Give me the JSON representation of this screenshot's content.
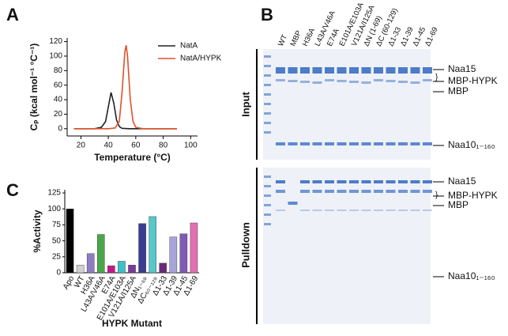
{
  "panels": [
    "A",
    "B",
    "C"
  ],
  "chart_data": [
    {
      "type": "line",
      "xlabel": "Temperature (°C)",
      "ylabel": "Cₚ (kcal mol⁻¹ °C⁻¹)",
      "xlim": [
        10,
        105
      ],
      "ylim": [
        -10,
        125
      ],
      "xticks": [
        20,
        40,
        60,
        80,
        100
      ],
      "yticks": [
        0,
        20,
        40,
        60,
        80,
        100,
        120
      ],
      "series": [
        {
          "name": "NatA",
          "color": "#222222",
          "x": [
            15,
            30,
            35,
            38,
            40,
            42,
            44,
            46,
            48,
            50,
            55,
            60,
            90
          ],
          "values": [
            0,
            0,
            2,
            10,
            30,
            50,
            35,
            12,
            3,
            0.5,
            0,
            0,
            0
          ]
        },
        {
          "name": "NatA/HYPK",
          "color": "#e0502a",
          "x": [
            15,
            40,
            45,
            48,
            50,
            52,
            53,
            54,
            56,
            58,
            60,
            65,
            90
          ],
          "values": [
            0,
            0,
            1,
            10,
            50,
            105,
            115,
            100,
            40,
            10,
            2,
            0,
            0
          ]
        }
      ]
    },
    {
      "type": "bar",
      "xlabel": "HYPK Mutant",
      "ylabel": "%Activity",
      "categories": [
        "Apo",
        "WT",
        "H36A",
        "L43A/V46A",
        "E74A",
        "E101A/E103A",
        "V121A/I125A",
        "ΔN₁₋₆₉",
        "ΔC₆₀₋₁₂₉",
        "Δ1-33",
        "Δ1-39",
        "Δ1-45",
        "Δ1-69"
      ],
      "values": [
        100,
        12,
        30,
        60,
        11,
        18,
        12,
        77,
        88,
        15,
        56,
        61,
        78
      ],
      "colors": [
        "#000000",
        "#d0d0d0",
        "#8e7cc3",
        "#4aa64a",
        "#c2188b",
        "#3cc1c8",
        "#7a3b9a",
        "#3b3b8f",
        "#58c7c9",
        "#6a2a7a",
        "#a8a3d8",
        "#7f5bb5",
        "#e070b0"
      ],
      "ylim": [
        0,
        130
      ],
      "yticks": [
        0,
        25,
        50,
        75,
        100,
        125
      ]
    }
  ],
  "gel": {
    "lanes": [
      "WT",
      "MBP",
      "H36A",
      "L43A/V46A",
      "E74A",
      "E101A/E103A",
      "V121A/I125A",
      "ΔN (1-69)",
      "ΔC (60-129)",
      "Δ1-33",
      "Δ1-39",
      "Δ1-45",
      "Δ1-69"
    ],
    "sections": [
      "Input",
      "Pulldown"
    ],
    "bands": [
      "Naa15",
      "MBP-HYPK",
      "MBP",
      "Naa10₁₋₁₆₀"
    ]
  }
}
